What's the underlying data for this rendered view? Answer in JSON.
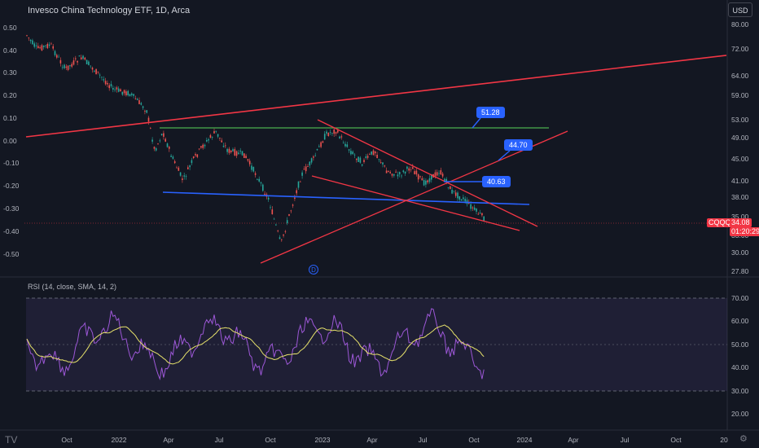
{
  "header": {
    "title": "Invesco China Technology ETF, 1D, Arca",
    "currency_button": "USD"
  },
  "left_axis": {
    "ticks": [
      "0.50",
      "0.40",
      "0.30",
      "0.20",
      "0.10",
      "0.00",
      "-0.10",
      "-0.20",
      "-0.30",
      "-0.40",
      "-0.50"
    ]
  },
  "right_axis": {
    "ticks": [
      "80.00",
      "72.00",
      "64.00",
      "59.00",
      "53.00",
      "49.00",
      "45.00",
      "41.00",
      "38.00",
      "35.00",
      "33.00",
      "30.00",
      "27.80"
    ]
  },
  "x_axis": {
    "ticks": [
      "Oct",
      "2022",
      "Apr",
      "Jul",
      "Oct",
      "2023",
      "Apr",
      "Jul",
      "Oct",
      "2024",
      "Apr",
      "Jul",
      "Oct",
      "20"
    ]
  },
  "price_tags": {
    "symbol": "CQQQ",
    "price": "34.08",
    "countdown": "01:20:29"
  },
  "callouts": {
    "level_51": "51.28",
    "level_44": "44.70",
    "level_40": "40.63"
  },
  "dividend_marker": "D",
  "rsi": {
    "title": "RSI (14, close, SMA, 14, 2)",
    "ticks": [
      "70.00",
      "60.00",
      "50.00",
      "40.00",
      "30.00",
      "20.00"
    ]
  },
  "colors": {
    "background": "#131722",
    "red_line": "#f23645",
    "green_line": "#4caf50",
    "blue_line": "#2962ff",
    "rsi_line": "#9c57d6",
    "rsi_sma": "#e8e36b"
  },
  "logo": "TV"
}
